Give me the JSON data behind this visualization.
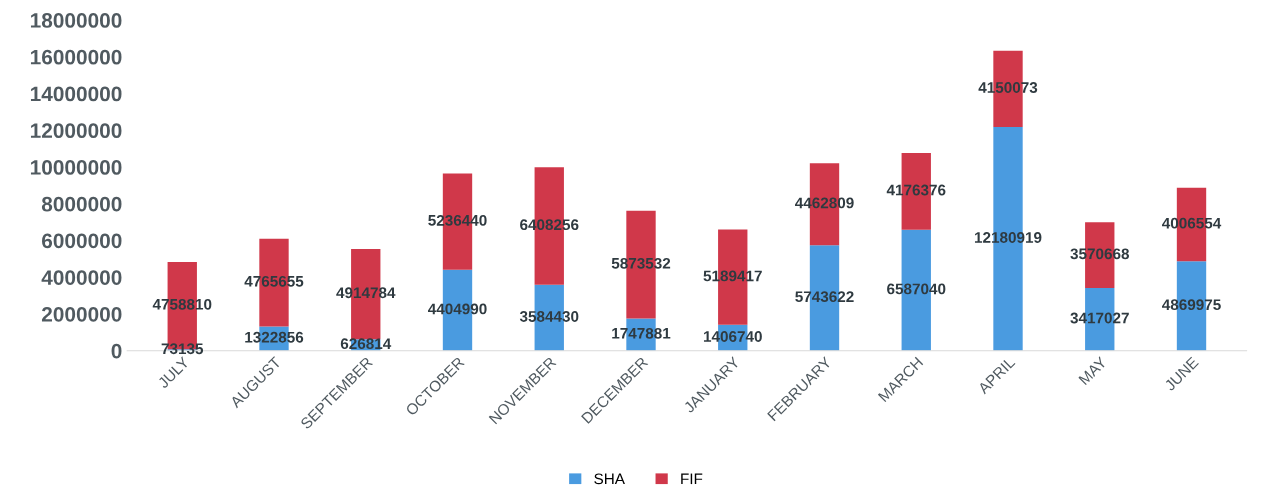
{
  "chart_data": {
    "type": "bar",
    "stacked": true,
    "data_labels": true,
    "legend": "bottom",
    "grid": false,
    "categories": [
      "JULY",
      "AUGUST",
      "SEPTEMBER",
      "OCTOBER",
      "NOVEMBER",
      "DECEMBER",
      "JANUARY",
      "FEBRUARY",
      "MARCH",
      "APRIL",
      "MAY",
      "JUNE"
    ],
    "ylim": [
      0,
      18000000
    ],
    "yticks": [
      0,
      2000000,
      4000000,
      6000000,
      8000000,
      10000000,
      12000000,
      14000000,
      16000000,
      18000000
    ],
    "series": [
      {
        "name": "SHA",
        "color": "#4a9be0",
        "values": [
          73135,
          1322856,
          626814,
          4404990,
          3584430,
          1747881,
          1406740,
          5743622,
          6587040,
          12180919,
          3417027,
          4869975
        ]
      },
      {
        "name": "FIF",
        "color": "#d0384a",
        "values": [
          4758810,
          4765655,
          4914784,
          5236440,
          6408256,
          5873532,
          5189417,
          4462809,
          4176376,
          4150073,
          3570668,
          4006554
        ]
      }
    ]
  }
}
